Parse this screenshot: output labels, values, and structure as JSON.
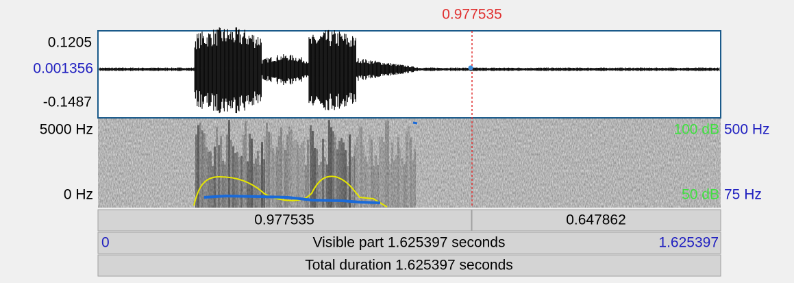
{
  "cursor": {
    "time": "0.977535"
  },
  "waveform": {
    "max": "0.1205",
    "cursor_value": "0.001356",
    "min": "-0.1487"
  },
  "spectrogram": {
    "max_frequency": "5000 Hz",
    "min_frequency": "0 Hz",
    "intensity_max": "100 dB",
    "intensity_min": "50 dB",
    "pitch_max": "500 Hz",
    "pitch_min": "75 Hz"
  },
  "time_bar": {
    "left_duration": "0.977535",
    "right_duration": "0.647862",
    "visible_start": "0",
    "visible_label": "Visible part 1.625397 seconds",
    "visible_end": "1.625397",
    "total_label": "Total duration 1.625397 seconds"
  }
}
